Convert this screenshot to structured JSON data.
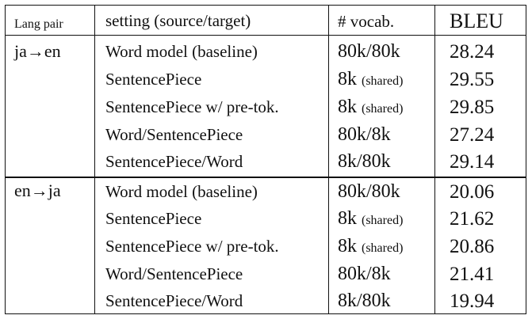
{
  "table": {
    "headers": {
      "lang_pair": "Lang pair",
      "setting": "setting (source/target)",
      "vocab": "# vocab.",
      "bleu": "BLEU"
    },
    "groups": [
      {
        "lang_pair": "ja→en",
        "rows": [
          {
            "setting": "Word model (baseline)",
            "vocab": "80k/80k",
            "vocab_note": "",
            "bleu": "28.24"
          },
          {
            "setting": "SentencePiece",
            "vocab": "8k",
            "vocab_note": "(shared)",
            "bleu": "29.55"
          },
          {
            "setting": "SentencePiece w/ pre-tok.",
            "vocab": "8k",
            "vocab_note": "(shared)",
            "bleu": "29.85"
          },
          {
            "setting": "Word/SentencePiece",
            "vocab": "80k/8k",
            "vocab_note": "",
            "bleu": "27.24"
          },
          {
            "setting": "SentencePiece/Word",
            "vocab": "8k/80k",
            "vocab_note": "",
            "bleu": "29.14"
          }
        ]
      },
      {
        "lang_pair": "en→ja",
        "rows": [
          {
            "setting": "Word model (baseline)",
            "vocab": "80k/80k",
            "vocab_note": "",
            "bleu": "20.06"
          },
          {
            "setting": "SentencePiece",
            "vocab": "8k",
            "vocab_note": "(shared)",
            "bleu": "21.62"
          },
          {
            "setting": "SentencePiece w/ pre-tok.",
            "vocab": "8k",
            "vocab_note": "(shared)",
            "bleu": "20.86"
          },
          {
            "setting": "Word/SentencePiece",
            "vocab": "80k/8k",
            "vocab_note": "",
            "bleu": "21.41"
          },
          {
            "setting": "SentencePiece/Word",
            "vocab": "8k/80k",
            "vocab_note": "",
            "bleu": "19.94"
          }
        ]
      }
    ]
  }
}
